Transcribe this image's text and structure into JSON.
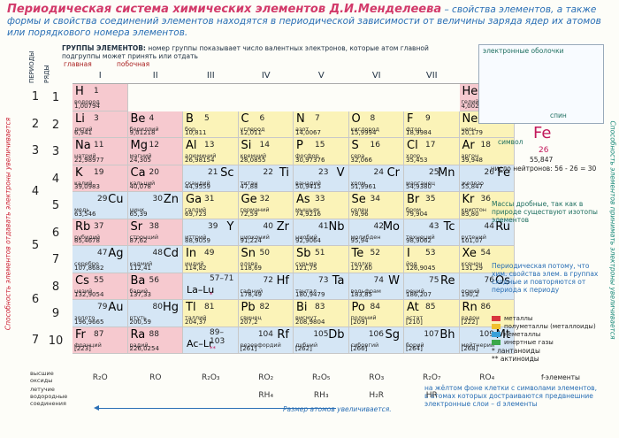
{
  "title": {
    "main": "Периодическая система химических элементов Д.И.Менделеева",
    "rest": " – свойства элементов, а также формы и свойства соединений элементов находятся в периодической зависимости от величины заряда ядер их атомов или порядкового номера элементов."
  },
  "side_left": "Способность элементов отдавать электроны увеличивается",
  "side_right": "Способность элементов принимать электроны увеличивается",
  "headers": {
    "periods": "ПЕРИОДЫ",
    "rows": "РЯДЫ",
    "groups_title": "ГРУППЫ ЭЛЕМЕНТОВ:",
    "groups_desc": "номер группы показывает число валентных электронов, которые атом главной подгруппы может принять или отдать",
    "main_sub": "главная",
    "side_sub": "побочная",
    "groups": [
      "I",
      "II",
      "III",
      "IV",
      "V",
      "VI",
      "VII",
      "VIII"
    ]
  },
  "periods": [
    "1",
    "2",
    "3",
    "4",
    "5",
    "6",
    "7"
  ],
  "rows": [
    "1",
    "2",
    "3",
    "4",
    "5",
    "6",
    "7",
    "8",
    "9",
    "10"
  ],
  "elements": [
    {
      "sym": "H",
      "num": "1",
      "name": "водород",
      "mass": "1,00794",
      "col": 0,
      "row": 0,
      "cls": "s"
    },
    {
      "sym": "He",
      "num": "2",
      "name": "гелий",
      "mass": "4,00260",
      "col": 7,
      "row": 0,
      "cls": "s"
    },
    {
      "sym": "Li",
      "num": "3",
      "name": "литий",
      "mass": "6,941",
      "col": 0,
      "row": 1,
      "cls": "s"
    },
    {
      "sym": "Be",
      "num": "4",
      "name": "бериллий",
      "mass": "9,01218",
      "col": 1,
      "row": 1,
      "cls": "s"
    },
    {
      "sym": "B",
      "num": "5",
      "name": "бор",
      "mass": "10,811",
      "col": 2,
      "row": 1,
      "cls": "p"
    },
    {
      "sym": "C",
      "num": "6",
      "name": "углерод",
      "mass": "12,011",
      "col": 3,
      "row": 1,
      "cls": "p"
    },
    {
      "sym": "N",
      "num": "7",
      "name": "азот",
      "mass": "14,0067",
      "col": 4,
      "row": 1,
      "cls": "p"
    },
    {
      "sym": "O",
      "num": "8",
      "name": "кислород",
      "mass": "15,9994",
      "col": 5,
      "row": 1,
      "cls": "p"
    },
    {
      "sym": "F",
      "num": "9",
      "name": "фтор",
      "mass": "18,9984",
      "col": 6,
      "row": 1,
      "cls": "p"
    },
    {
      "sym": "Ne",
      "num": "10",
      "name": "неон",
      "mass": "20,179",
      "col": 7,
      "row": 1,
      "cls": "p"
    },
    {
      "sym": "Na",
      "num": "11",
      "name": "натрий",
      "mass": "22,98977",
      "col": 0,
      "row": 2,
      "cls": "s"
    },
    {
      "sym": "Mg",
      "num": "12",
      "name": "магний",
      "mass": "24,305",
      "col": 1,
      "row": 2,
      "cls": "s"
    },
    {
      "sym": "Al",
      "num": "13",
      "name": "алюминий",
      "mass": "26,98154",
      "col": 2,
      "row": 2,
      "cls": "p"
    },
    {
      "sym": "Si",
      "num": "14",
      "name": "кремний",
      "mass": "28,0855",
      "col": 3,
      "row": 2,
      "cls": "p"
    },
    {
      "sym": "P",
      "num": "15",
      "name": "фосфор",
      "mass": "30,97376",
      "col": 4,
      "row": 2,
      "cls": "p"
    },
    {
      "sym": "S",
      "num": "16",
      "name": "сера",
      "mass": "32,066",
      "col": 5,
      "row": 2,
      "cls": "p"
    },
    {
      "sym": "Cl",
      "num": "17",
      "name": "хлор",
      "mass": "35,453",
      "col": 6,
      "row": 2,
      "cls": "p"
    },
    {
      "sym": "Ar",
      "num": "18",
      "name": "аргон",
      "mass": "39,948",
      "col": 7,
      "row": 2,
      "cls": "p"
    },
    {
      "sym": "K",
      "num": "19",
      "name": "калий",
      "mass": "39,0983",
      "col": 0,
      "row": 3,
      "cls": "s"
    },
    {
      "sym": "Ca",
      "num": "20",
      "name": "кальций",
      "mass": "40,078",
      "col": 1,
      "row": 3,
      "cls": "s"
    },
    {
      "sym": "Sc",
      "num": "21",
      "name": "скандий",
      "mass": "44,9559",
      "col": 2,
      "row": 3,
      "cls": "d"
    },
    {
      "sym": "Ti",
      "num": "22",
      "name": "титан",
      "mass": "47,88",
      "col": 3,
      "row": 3,
      "cls": "d"
    },
    {
      "sym": "V",
      "num": "23",
      "name": "ванадий",
      "mass": "50,9415",
      "col": 4,
      "row": 3,
      "cls": "d"
    },
    {
      "sym": "Cr",
      "num": "24",
      "name": "хром",
      "mass": "51,9961",
      "col": 5,
      "row": 3,
      "cls": "d"
    },
    {
      "sym": "Mn",
      "num": "25",
      "name": "марганец",
      "mass": "54,9380",
      "col": 6,
      "row": 3,
      "cls": "d"
    },
    {
      "sym": "Fe",
      "num": "26",
      "name": "железо",
      "mass": "55,847",
      "col": 7,
      "row": 3,
      "cls": "d"
    },
    {
      "sym": "Cu",
      "num": "29",
      "name": "медь",
      "mass": "63,546",
      "col": 0,
      "row": 4,
      "cls": "d"
    },
    {
      "sym": "Zn",
      "num": "30",
      "name": "цинк",
      "mass": "65,39",
      "col": 1,
      "row": 4,
      "cls": "d"
    },
    {
      "sym": "Ga",
      "num": "31",
      "name": "галлий",
      "mass": "69,723",
      "col": 2,
      "row": 4,
      "cls": "p"
    },
    {
      "sym": "Ge",
      "num": "32",
      "name": "германий",
      "mass": "72,59",
      "col": 3,
      "row": 4,
      "cls": "p"
    },
    {
      "sym": "As",
      "num": "33",
      "name": "мышьяк",
      "mass": "74,9216",
      "col": 4,
      "row": 4,
      "cls": "p"
    },
    {
      "sym": "Se",
      "num": "34",
      "name": "селен",
      "mass": "78,96",
      "col": 5,
      "row": 4,
      "cls": "p"
    },
    {
      "sym": "Br",
      "num": "35",
      "name": "бром",
      "mass": "79,904",
      "col": 6,
      "row": 4,
      "cls": "p"
    },
    {
      "sym": "Kr",
      "num": "36",
      "name": "криптон",
      "mass": "83,80",
      "col": 7,
      "row": 4,
      "cls": "p"
    },
    {
      "sym": "Rb",
      "num": "37",
      "name": "рубидий",
      "mass": "85,4678",
      "col": 0,
      "row": 5,
      "cls": "s"
    },
    {
      "sym": "Sr",
      "num": "38",
      "name": "стронций",
      "mass": "87,62",
      "col": 1,
      "row": 5,
      "cls": "s"
    },
    {
      "sym": "Y",
      "num": "39",
      "name": "иттрий",
      "mass": "88,9059",
      "col": 2,
      "row": 5,
      "cls": "d"
    },
    {
      "sym": "Zr",
      "num": "40",
      "name": "цирконий",
      "mass": "91,224",
      "col": 3,
      "row": 5,
      "cls": "d"
    },
    {
      "sym": "Nb",
      "num": "41",
      "name": "ниобий",
      "mass": "92,9064",
      "col": 4,
      "row": 5,
      "cls": "d"
    },
    {
      "sym": "Mo",
      "num": "42",
      "name": "молибден",
      "mass": "95,94",
      "col": 5,
      "row": 5,
      "cls": "d"
    },
    {
      "sym": "Tc",
      "num": "43",
      "name": "технеций",
      "mass": "98,9062",
      "col": 6,
      "row": 5,
      "cls": "d"
    },
    {
      "sym": "Ru",
      "num": "44",
      "name": "рутений",
      "mass": "101,07",
      "col": 7,
      "row": 5,
      "cls": "d"
    },
    {
      "sym": "Ag",
      "num": "47",
      "name": "серебро",
      "mass": "107,8682",
      "col": 0,
      "row": 6,
      "cls": "d"
    },
    {
      "sym": "Cd",
      "num": "48",
      "name": "кадмий",
      "mass": "112,41",
      "col": 1,
      "row": 6,
      "cls": "d"
    },
    {
      "sym": "In",
      "num": "49",
      "name": "индий",
      "mass": "114,82",
      "col": 2,
      "row": 6,
      "cls": "p"
    },
    {
      "sym": "Sn",
      "num": "50",
      "name": "олово",
      "mass": "118,69",
      "col": 3,
      "row": 6,
      "cls": "p"
    },
    {
      "sym": "Sb",
      "num": "51",
      "name": "сурьма",
      "mass": "121,75",
      "col": 4,
      "row": 6,
      "cls": "p"
    },
    {
      "sym": "Te",
      "num": "52",
      "name": "теллур",
      "mass": "127,60",
      "col": 5,
      "row": 6,
      "cls": "p"
    },
    {
      "sym": "I",
      "num": "53",
      "name": "йод",
      "mass": "126,9045",
      "col": 6,
      "row": 6,
      "cls": "p"
    },
    {
      "sym": "Xe",
      "num": "54",
      "name": "ксенон",
      "mass": "131,29",
      "col": 7,
      "row": 6,
      "cls": "p"
    },
    {
      "sym": "Cs",
      "num": "55",
      "name": "цезий",
      "mass": "132,9054",
      "col": 0,
      "row": 7,
      "cls": "s"
    },
    {
      "sym": "Ba",
      "num": "56",
      "name": "барий",
      "mass": "137,33",
      "col": 1,
      "row": 7,
      "cls": "s"
    },
    {
      "sym": "La–Lu",
      "num": "57–71",
      "name": "",
      "mass": "*",
      "col": 2,
      "row": 7,
      "cls": "d"
    },
    {
      "sym": "Hf",
      "num": "72",
      "name": "гафний",
      "mass": "178,49",
      "col": 3,
      "row": 7,
      "cls": "d"
    },
    {
      "sym": "Ta",
      "num": "73",
      "name": "тантал",
      "mass": "180,9479",
      "col": 4,
      "row": 7,
      "cls": "d"
    },
    {
      "sym": "W",
      "num": "74",
      "name": "вольфрам",
      "mass": "183,85",
      "col": 5,
      "row": 7,
      "cls": "d"
    },
    {
      "sym": "Re",
      "num": "75",
      "name": "рений",
      "mass": "186,207",
      "col": 6,
      "row": 7,
      "cls": "d"
    },
    {
      "sym": "Os",
      "num": "76",
      "name": "осмий",
      "mass": "190,2",
      "col": 7,
      "row": 7,
      "cls": "d"
    },
    {
      "sym": "Au",
      "num": "79",
      "name": "золото",
      "mass": "196,9665",
      "col": 0,
      "row": 8,
      "cls": "d"
    },
    {
      "sym": "Hg",
      "num": "80",
      "name": "ртуть",
      "mass": "200,59",
      "col": 1,
      "row": 8,
      "cls": "d"
    },
    {
      "sym": "Tl",
      "num": "81",
      "name": "таллий",
      "mass": "204,37",
      "col": 2,
      "row": 8,
      "cls": "p"
    },
    {
      "sym": "Pb",
      "num": "82",
      "name": "свинец",
      "mass": "207,2",
      "col": 3,
      "row": 8,
      "cls": "p"
    },
    {
      "sym": "Bi",
      "num": "83",
      "name": "висмут",
      "mass": "208,9804",
      "col": 4,
      "row": 8,
      "cls": "p"
    },
    {
      "sym": "Po",
      "num": "84",
      "name": "полоний",
      "mass": "[209]",
      "col": 5,
      "row": 8,
      "cls": "p"
    },
    {
      "sym": "At",
      "num": "85",
      "name": "астат",
      "mass": "[210]",
      "col": 6,
      "row": 8,
      "cls": "p"
    },
    {
      "sym": "Rn",
      "num": "86",
      "name": "радон",
      "mass": "[222]",
      "col": 7,
      "row": 8,
      "cls": "p"
    },
    {
      "sym": "Fr",
      "num": "87",
      "name": "франций",
      "mass": "[223]",
      "col": 0,
      "row": 9,
      "cls": "s"
    },
    {
      "sym": "Ra",
      "num": "88",
      "name": "радий",
      "mass": "226,0254",
      "col": 1,
      "row": 9,
      "cls": "s"
    },
    {
      "sym": "Ac–Lr",
      "num": "89–103",
      "name": "",
      "mass": "**",
      "col": 2,
      "row": 9,
      "cls": "d"
    },
    {
      "sym": "Rf",
      "num": "104",
      "name": "резерфордий",
      "mass": "[261]",
      "col": 3,
      "row": 9,
      "cls": "d"
    },
    {
      "sym": "Db",
      "num": "105",
      "name": "дубний",
      "mass": "[262]",
      "col": 4,
      "row": 9,
      "cls": "d"
    },
    {
      "sym": "Sg",
      "num": "106",
      "name": "сиборгий",
      "mass": "[266]",
      "col": 5,
      "row": 9,
      "cls": "d"
    },
    {
      "sym": "Bh",
      "num": "107",
      "name": "борий",
      "mass": "[264]",
      "col": 6,
      "row": 9,
      "cls": "d"
    },
    {
      "sym": "Mt",
      "num": "109",
      "name": "мейтнерий",
      "mass": "[268]",
      "col": 7,
      "row": 9,
      "cls": "d"
    }
  ],
  "viii_extra": [
    {
      "sym": "Co",
      "num": "27",
      "name": "кобальт",
      "mass": "58,9332"
    },
    {
      "sym": "Ni",
      "num": "28",
      "name": "никель",
      "mass": "58,69"
    },
    {
      "sym": "Rh",
      "num": "45",
      "name": "родий",
      "mass": "102,9055"
    },
    {
      "sym": "Pd",
      "num": "46",
      "name": "палладий",
      "mass": "106,4"
    },
    {
      "sym": "Ir",
      "num": "77",
      "name": "иридий",
      "mass": "192,22"
    },
    {
      "sym": "Pt",
      "num": "78",
      "name": "платина",
      "mass": "195,08"
    }
  ],
  "bottom": {
    "oxides_label": "высшие оксиды",
    "hydrides_label": "летучие водородные соединения",
    "oxides": [
      "R₂O",
      "RO",
      "R₂O₃",
      "RO₂",
      "R₂O₅",
      "RO₃",
      "R₂O₇",
      "RO₄"
    ],
    "hydrides": [
      "",
      "",
      "",
      "RH₄",
      "RH₃",
      "H₂R",
      "HR",
      ""
    ],
    "size_arrow": "Размер атомов увеличивается.",
    "note_bottom": "на жёлтом фоне клетки с символами элементов, в атомах которых достраиваются предвнешние электронные слои – d элементы"
  },
  "info": {
    "mass_note": "Массы дробные, так как в природе существуют изотопы элементов",
    "periodic_note": "Периодическая потому, что хим. свойства элем. в группах сходные и повторяются от периода к периоду",
    "fe_example": "Fe",
    "fe_charge": "26",
    "fe_name": "символ",
    "fe_mass": "55,847",
    "fe_neutrons": "число нейтронов: 56 - 26 = 30",
    "shells_label": "электронные оболочки",
    "spin_label": "спин"
  },
  "legend": [
    {
      "label": "металлы",
      "color": "#d9363e"
    },
    {
      "label": "полуметаллы (металлоиды)",
      "color": "#f0c030"
    },
    {
      "label": "неметаллы",
      "color": "#3aa0d8"
    },
    {
      "label": "инертные газы",
      "color": "#3aa84a"
    }
  ],
  "lanthanides_note": "* лантаноиды",
  "actinides_note": "** актиноиды",
  "f_elements": "f-элементы"
}
